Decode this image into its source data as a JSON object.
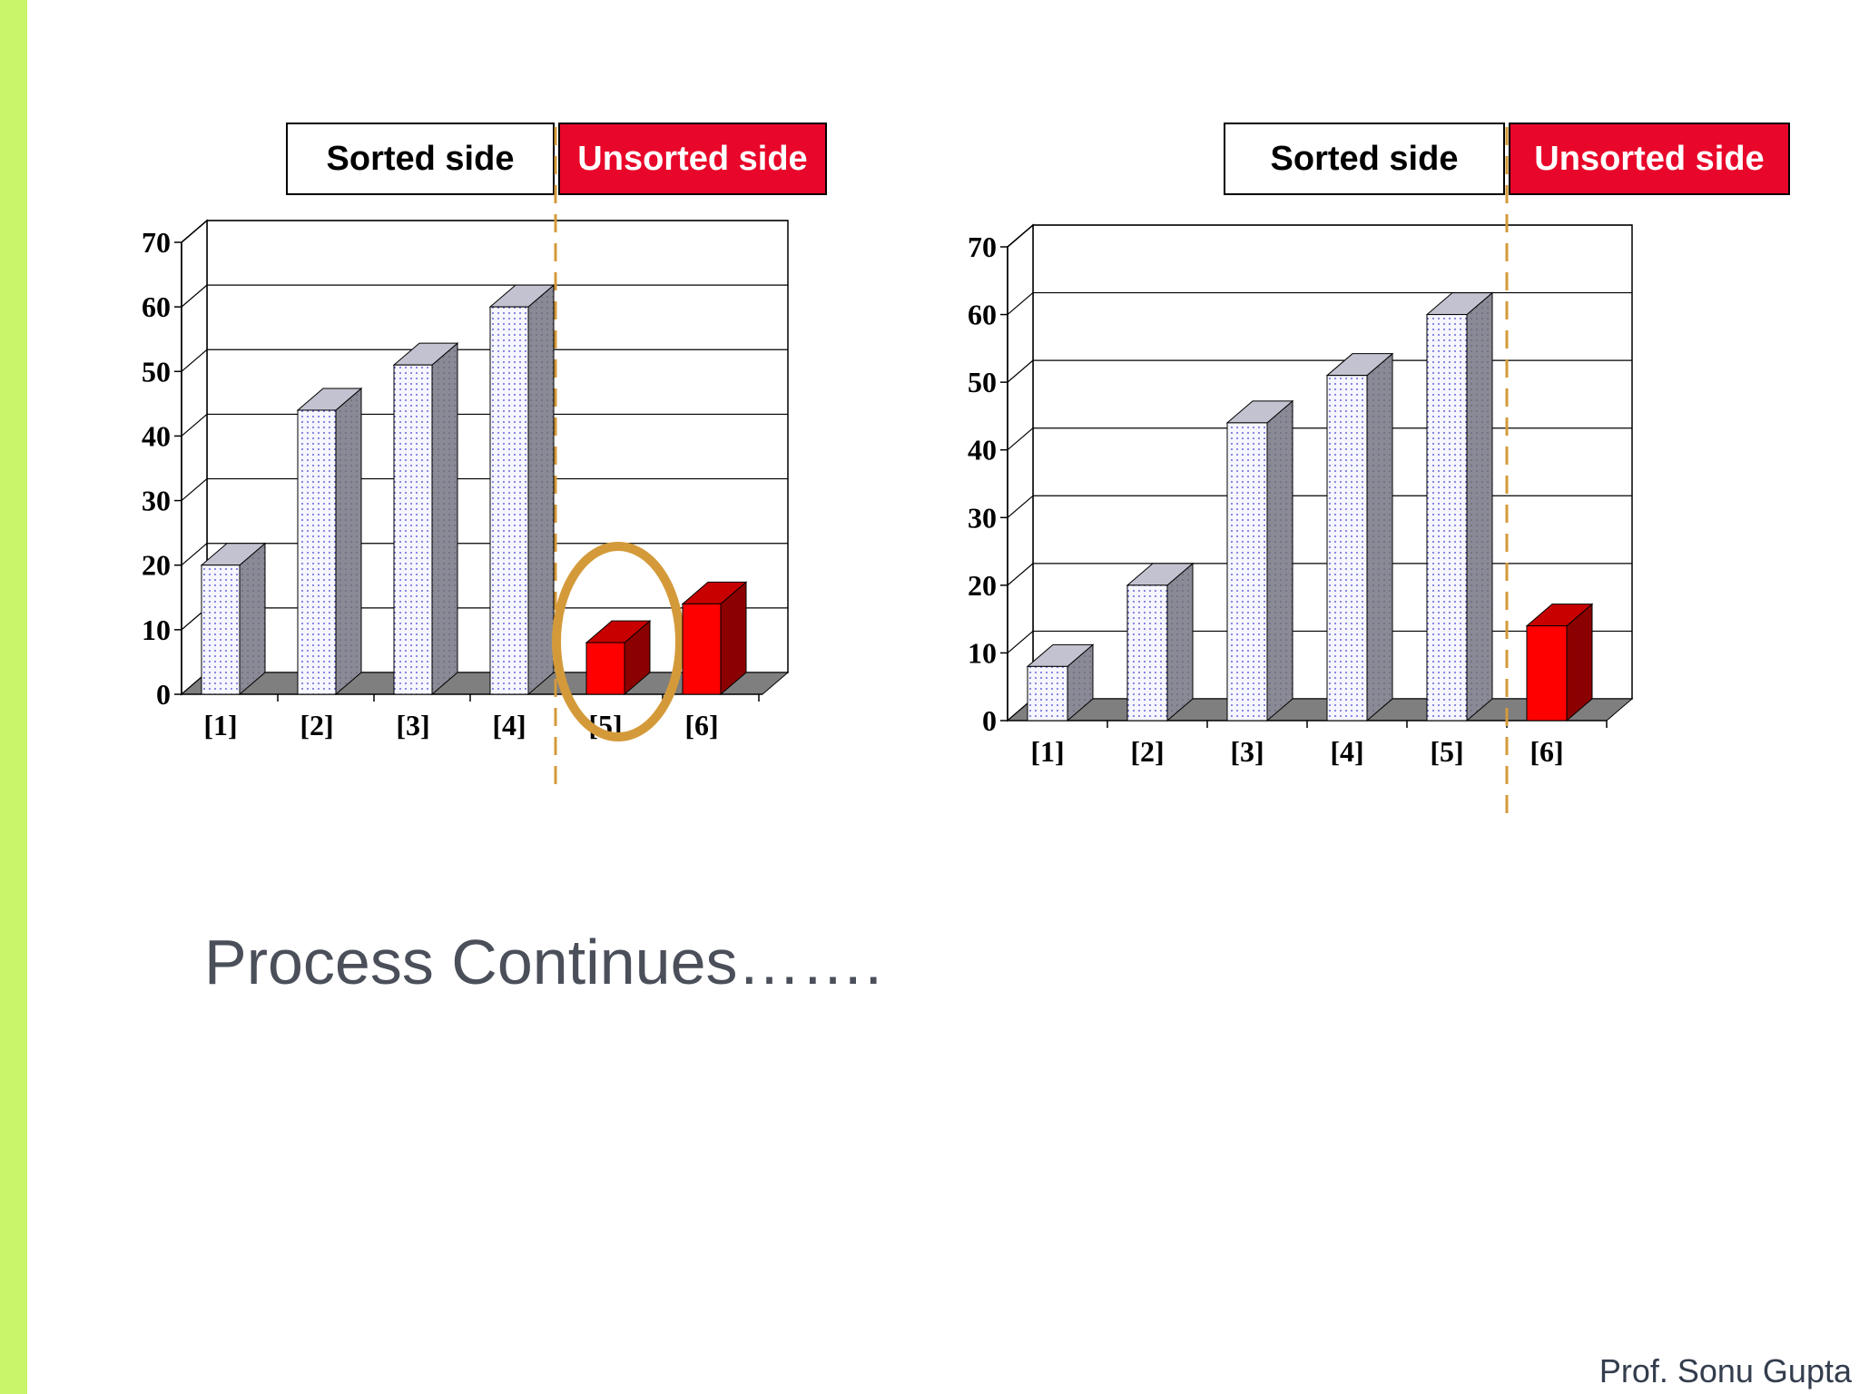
{
  "colors": {
    "accent": "#c8f56a",
    "unsorted": "#e8062a",
    "bar_face": "#f6f6ff",
    "bar_dots": "#3a3ad0",
    "bar_side": "#8a8a96",
    "bar_top": "#c2c2d0",
    "red_face": "#ff0000",
    "red_side": "#8b0000",
    "red_top": "#c80000",
    "floor": "#7f7f7f",
    "divider": "#d49a3a",
    "highlight": "#d49a3a"
  },
  "caption": "Process Continues…….",
  "footer": "Prof. Sonu Gupta",
  "chart_data": [
    {
      "type": "bar",
      "categories": [
        "[1]",
        "[2]",
        "[3]",
        "[4]",
        "[5]",
        "[6]"
      ],
      "values": [
        20,
        44,
        51,
        60,
        8,
        14
      ],
      "ylim": [
        0,
        70
      ],
      "yticks": [
        "0",
        "10",
        "20",
        "30",
        "40",
        "50",
        "60",
        "70"
      ],
      "sorted_count": 4,
      "highlight_index": 4,
      "legend": {
        "sorted": "Sorted side",
        "unsorted": "Unsorted side"
      },
      "grid": true
    },
    {
      "type": "bar",
      "categories": [
        "[1]",
        "[2]",
        "[3]",
        "[4]",
        "[5]",
        "[6]"
      ],
      "values": [
        8,
        20,
        44,
        51,
        60,
        14
      ],
      "ylim": [
        0,
        70
      ],
      "yticks": [
        "0",
        "10",
        "20",
        "30",
        "40",
        "50",
        "60",
        "70"
      ],
      "sorted_count": 5,
      "highlight_index": null,
      "legend": {
        "sorted": "Sorted side",
        "unsorted": "Unsorted side"
      },
      "grid": true
    }
  ]
}
